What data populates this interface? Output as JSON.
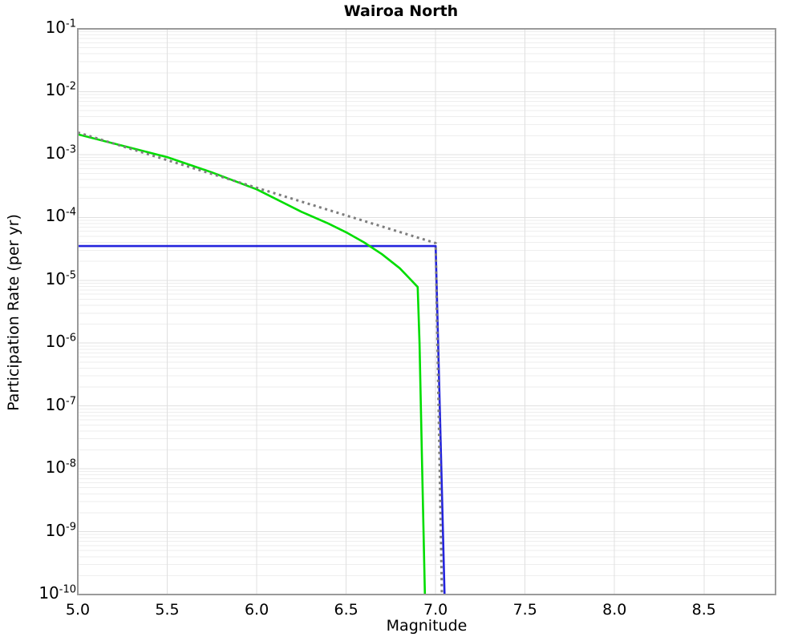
{
  "title": "Wairoa North",
  "chart_data": {
    "type": "line",
    "title": "Wairoa North",
    "xlabel": "Magnitude",
    "ylabel": "Participation Rate (per yr)",
    "xlim": [
      5.0,
      8.9
    ],
    "ylim_log10": [
      -10,
      -1
    ],
    "xticks": [
      5.0,
      5.5,
      6.0,
      6.5,
      7.0,
      7.5,
      8.0,
      8.5
    ],
    "ytick_exponents": [
      -1,
      -2,
      -3,
      -4,
      -5,
      -6,
      -7,
      -8,
      -9,
      -10
    ],
    "grid": {
      "horizontal_log_minor": true,
      "horizontal_major": true,
      "vertical_major": true
    },
    "legend": "none",
    "colors": {
      "background": "#ffffff",
      "frame": "#9a9a9a",
      "major_grid": "#e0e0e0",
      "minor_grid": "#eeeeee",
      "text": "#000000",
      "blue_line": "#2323dd",
      "green_line": "#00dd00",
      "gray_dotted_line": "#7d7d7d"
    },
    "series": [
      {
        "name": "blue-solid-line",
        "color": "#2323dd",
        "style": "solid",
        "width": 2.6,
        "points": [
          [
            5.0,
            3.5e-05
          ],
          [
            7.0,
            3.5e-05
          ],
          [
            7.05,
            1e-10
          ]
        ]
      },
      {
        "name": "green-solid-line",
        "color": "#00dd00",
        "style": "solid",
        "width": 2.6,
        "points": [
          [
            5.0,
            0.0021
          ],
          [
            5.25,
            0.00138
          ],
          [
            5.5,
            0.00091
          ],
          [
            5.75,
            0.00052
          ],
          [
            6.0,
            0.00028
          ],
          [
            6.25,
            0.000123
          ],
          [
            6.4,
            8e-05
          ],
          [
            6.5,
            5.8e-05
          ],
          [
            6.6,
            4e-05
          ],
          [
            6.7,
            2.6e-05
          ],
          [
            6.8,
            1.55e-05
          ],
          [
            6.85,
            1.1e-05
          ],
          [
            6.9,
            7.8e-06
          ],
          [
            6.91,
            1e-06
          ],
          [
            6.925,
            1e-08
          ],
          [
            6.94,
            1e-10
          ]
        ]
      },
      {
        "name": "gray-dotted-line",
        "color": "#7d7d7d",
        "style": "dotted",
        "width": 3,
        "points": [
          [
            5.0,
            0.00225
          ],
          [
            7.0,
            3.9e-05
          ],
          [
            7.035,
            1e-10
          ]
        ]
      }
    ]
  }
}
